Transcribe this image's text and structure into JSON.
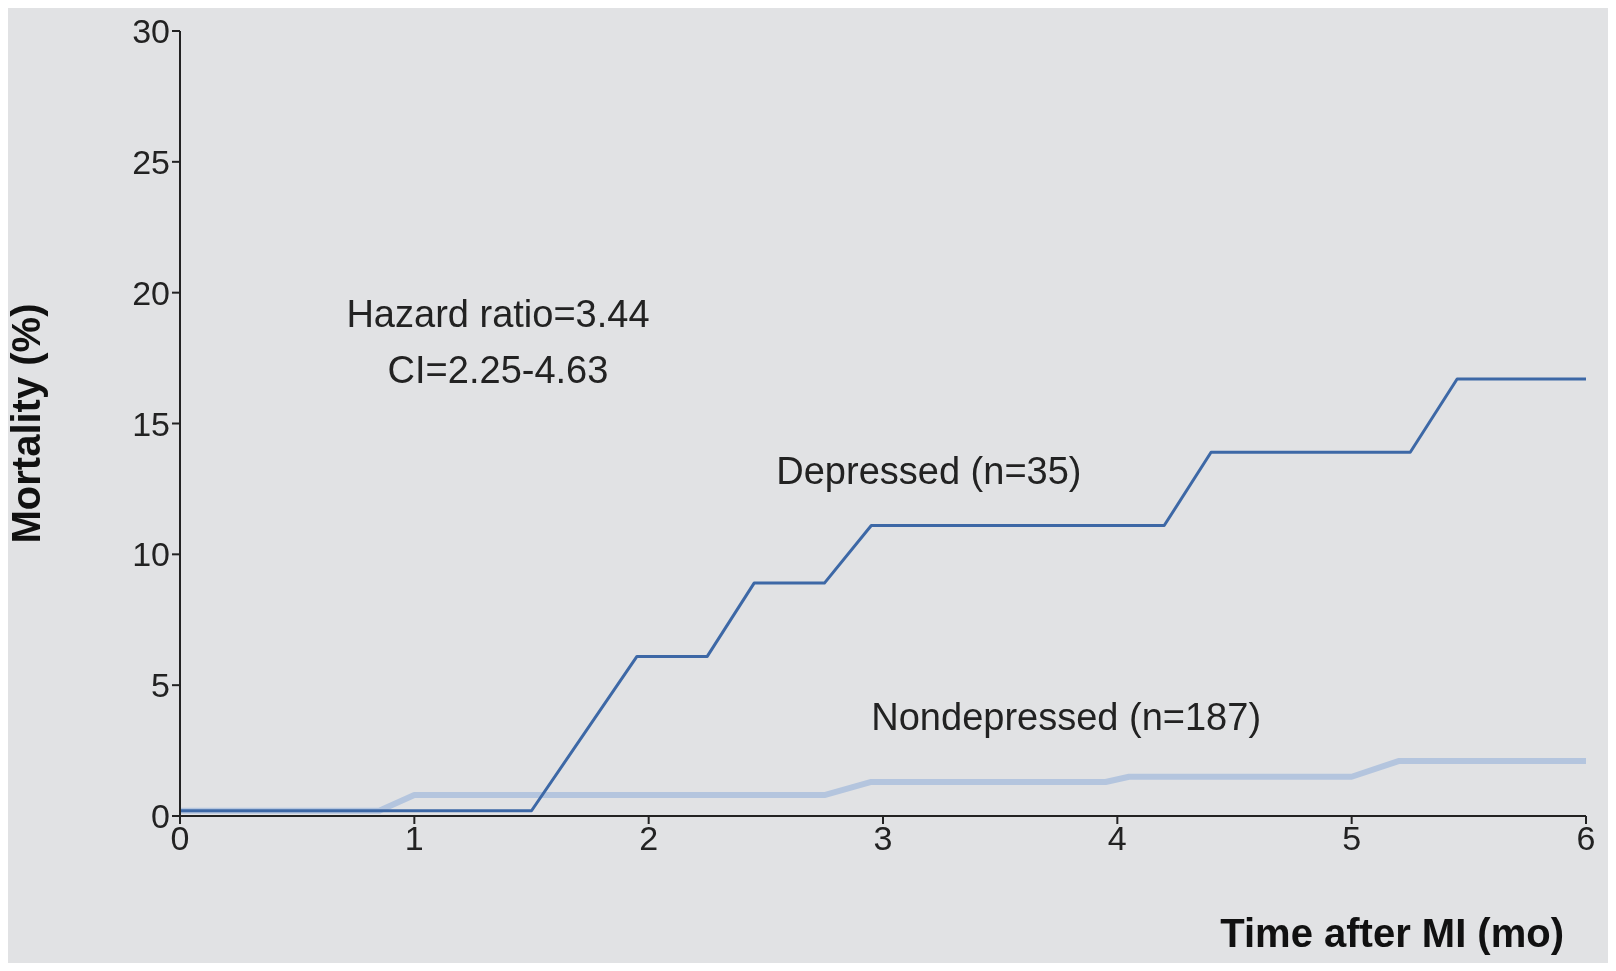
{
  "chart_data": {
    "type": "line",
    "xlabel": "Time after MI (mo)",
    "ylabel": "Mortality (%)",
    "annotations": [
      "Hazard ratio=3.44",
      "CI=2.25-4.63"
    ],
    "xlim": [
      0,
      6
    ],
    "xticks": [
      0,
      1,
      2,
      3,
      4,
      5,
      6
    ],
    "ylim": [
      0,
      30
    ],
    "yticks": [
      0,
      5,
      10,
      15,
      20,
      25,
      30
    ],
    "grid": false,
    "legend": false,
    "marker": "none",
    "line_style": "solid",
    "series": [
      {
        "name": "Depressed (n=35)",
        "color": "#3d68a6",
        "x": [
          0,
          1.5,
          1.95,
          2.25,
          2.45,
          2.75,
          2.95,
          4.2,
          4.4,
          5.25,
          5.45,
          6
        ],
        "values": [
          0.2,
          0.2,
          6.1,
          6.1,
          8.9,
          8.9,
          11.1,
          11.1,
          13.9,
          13.9,
          16.7,
          16.7
        ]
      },
      {
        "name": "Nondepressed (n=187)",
        "color": "#b4c5de",
        "x": [
          0,
          0.85,
          1,
          2.75,
          2.95,
          3.95,
          4.05,
          5,
          5.2,
          6
        ],
        "values": [
          0.2,
          0.2,
          0.8,
          0.8,
          1.3,
          1.3,
          1.5,
          1.5,
          2.1,
          2.1
        ]
      }
    ]
  }
}
